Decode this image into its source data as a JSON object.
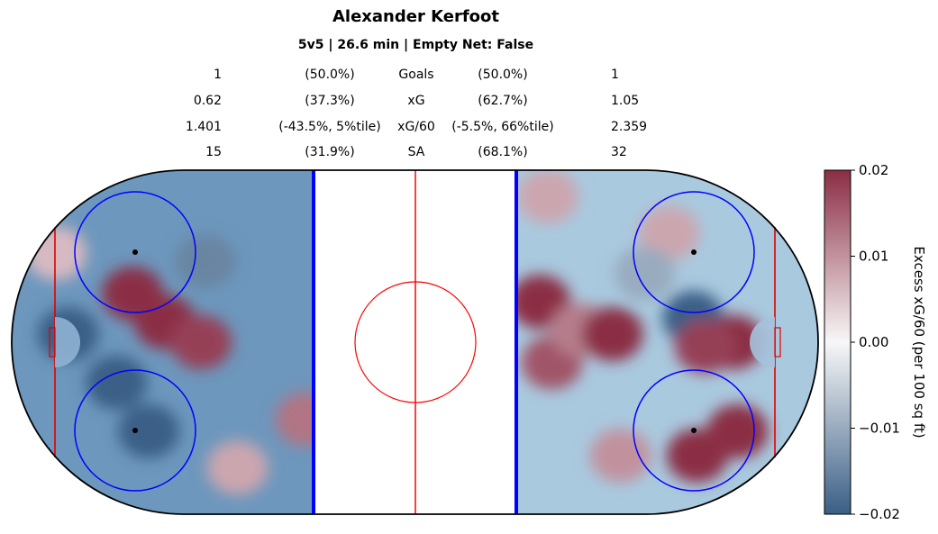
{
  "title": "Alexander Kerfoot",
  "subtitle": "5v5 | 26.6 min | Empty Net: False",
  "stats_table": {
    "rows": [
      {
        "left_value": "1",
        "left_pct": "(50.0%)",
        "label": "Goals",
        "right_pct": "(50.0%)",
        "right_value": "1"
      },
      {
        "left_value": "0.62",
        "left_pct": "(37.3%)",
        "label": "xG",
        "right_pct": "(62.7%)",
        "right_value": "1.05"
      },
      {
        "left_value": "1.401",
        "left_pct": "(-43.5%, 5%tile)",
        "label": "xG/60",
        "right_pct": "(-5.5%, 66%tile)",
        "right_value": "2.359"
      },
      {
        "left_value": "15",
        "left_pct": "(31.9%)",
        "label": "SA",
        "right_pct": "(68.1%)",
        "right_value": "32"
      }
    ]
  },
  "colorbar": {
    "label": "Excess xG/60 (per 100 sq ft)",
    "ticks": [
      "0.02",
      "0.01",
      "0.00",
      "−0.01",
      "−0.02"
    ],
    "tick_values": [
      0.02,
      0.01,
      0.0,
      -0.01,
      -0.02
    ],
    "vmin": -0.02,
    "vmax": 0.02,
    "colormap": "RdBu_r",
    "low_color": "#3a5f86",
    "mid_color": "#f7f7f7",
    "high_color": "#8b2d44"
  },
  "chart_data": {
    "type": "heatmap",
    "title": "Alexander Kerfoot",
    "subtitle": "5v5 | 26.6 min | Empty Net: False",
    "xlim": [
      -100,
      100
    ],
    "ylim": [
      -42.5,
      42.5
    ],
    "grid": false,
    "value_range": [
      -0.02,
      0.02
    ],
    "left_half": {
      "blobs": [
        {
          "x": -70,
          "y": 12,
          "value": 0.02
        },
        {
          "x": -62,
          "y": 5,
          "value": 0.02
        },
        {
          "x": -53,
          "y": 0,
          "value": 0.018
        },
        {
          "x": -74,
          "y": -10,
          "value": -0.02
        },
        {
          "x": -86,
          "y": 2,
          "value": -0.02
        },
        {
          "x": -66,
          "y": -22,
          "value": -0.02
        },
        {
          "x": -52,
          "y": 20,
          "value": -0.015
        },
        {
          "x": -89,
          "y": 22,
          "value": 0.006
        },
        {
          "x": -27,
          "y": -19,
          "value": 0.013
        },
        {
          "x": -44,
          "y": -31,
          "value": 0.008
        }
      ]
    },
    "right_half": {
      "blobs": [
        {
          "x": 69,
          "y": 6,
          "value": -0.02
        },
        {
          "x": 80,
          "y": -22,
          "value": 0.02
        },
        {
          "x": 70,
          "y": -28,
          "value": 0.02
        },
        {
          "x": 79,
          "y": 0,
          "value": 0.02
        },
        {
          "x": 72,
          "y": -1,
          "value": 0.018
        },
        {
          "x": 31,
          "y": 10,
          "value": 0.02
        },
        {
          "x": 34,
          "y": -5,
          "value": 0.016
        },
        {
          "x": 41,
          "y": 3,
          "value": 0.012
        },
        {
          "x": 49,
          "y": 2,
          "value": 0.02
        },
        {
          "x": 33,
          "y": 36,
          "value": 0.008
        },
        {
          "x": 63,
          "y": 27,
          "value": 0.008
        },
        {
          "x": 51,
          "y": -28,
          "value": 0.01
        },
        {
          "x": 57,
          "y": 17,
          "value": -0.01
        }
      ]
    }
  }
}
